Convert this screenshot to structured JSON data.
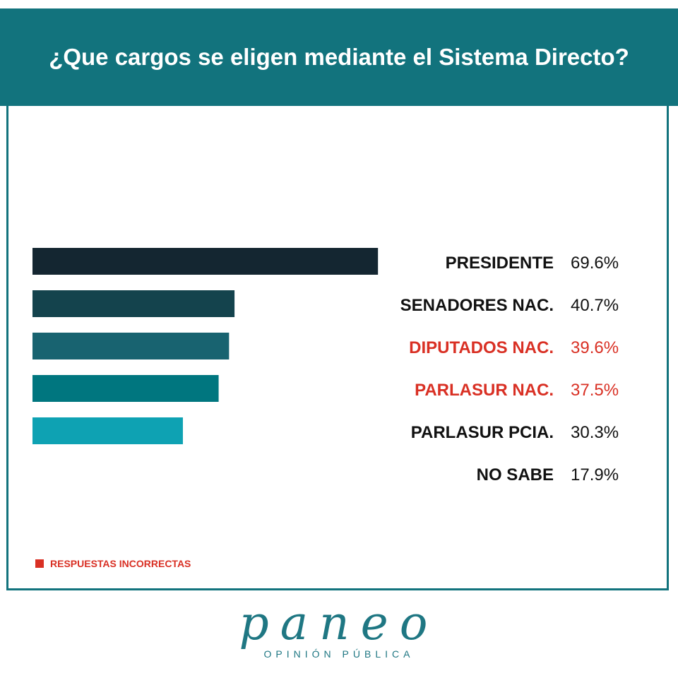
{
  "title": "¿Que cargos se eligen mediante el Sistema Directo?",
  "colors": {
    "header": "#12737d",
    "text_default": "#111111",
    "text_incorrect": "#d93024",
    "bars": [
      "#142631",
      "#14434d",
      "#186370",
      "#00767f",
      "#0ea2b3"
    ]
  },
  "chart_data": {
    "type": "bar",
    "orientation": "horizontal",
    "categories": [
      "PRESIDENTE",
      "SENADORES NAC.",
      "DIPUTADOS NAC.",
      "PARLASUR NAC.",
      "PARLASUR PCIA.",
      "NO SABE"
    ],
    "values": [
      69.6,
      40.7,
      39.6,
      37.5,
      30.3,
      17.9
    ],
    "value_labels": [
      "69.6%",
      "40.7%",
      "39.6%",
      "37.5%",
      "30.3%",
      "17.9%"
    ],
    "incorrect": [
      false,
      false,
      true,
      true,
      false,
      false
    ],
    "bars_drawn": [
      true,
      true,
      true,
      true,
      true,
      false
    ],
    "xlim": [
      0,
      70
    ]
  },
  "legend": {
    "label": "RESPUESTAS INCORRECTAS",
    "color": "#d93024"
  },
  "brand": {
    "name": "paneo",
    "subtitle": "OPINIÓN PÚBLICA"
  }
}
